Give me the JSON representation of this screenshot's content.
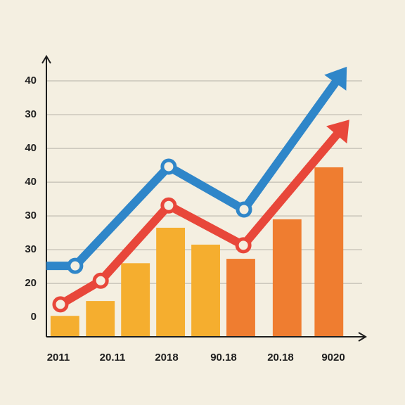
{
  "chart_data": {
    "type": "bar-line",
    "y_labels": [
      "0",
      "20",
      "30",
      "30",
      "40",
      "40",
      "30",
      "40"
    ],
    "x_labels": [
      "2011",
      "20.11",
      "2018",
      "90.18",
      "20.18",
      "9020"
    ],
    "xlim": [
      0,
      100
    ],
    "ylim": [
      -0.58,
      7.73
    ],
    "bars": {
      "x": [
        5.8,
        16.9,
        27.9,
        38.9,
        49.9,
        60.9,
        75.4,
        88.5
      ],
      "values": [
        0.04,
        0.48,
        1.6,
        2.65,
        2.15,
        1.73,
        2.9,
        4.44
      ],
      "colors": [
        "#f5ae2f",
        "#f5ae2f",
        "#f5ae2f",
        "#f5ae2f",
        "#f5ae2f",
        "#ef7d30",
        "#ef7d30",
        "#ef7d30"
      ]
    },
    "series": [
      {
        "color": "#2f86c9",
        "x": [
          0,
          9.0,
          38.3,
          61.9,
          94.1
        ],
        "values": [
          1.52,
          1.52,
          4.46,
          3.19,
          7.42
        ]
      },
      {
        "color": "#e8473a",
        "x": [
          4.4,
          17.0,
          38.3,
          61.7,
          94.9
        ],
        "values": [
          0.38,
          1.08,
          3.31,
          2.13,
          5.85
        ]
      }
    ],
    "grid": true
  }
}
